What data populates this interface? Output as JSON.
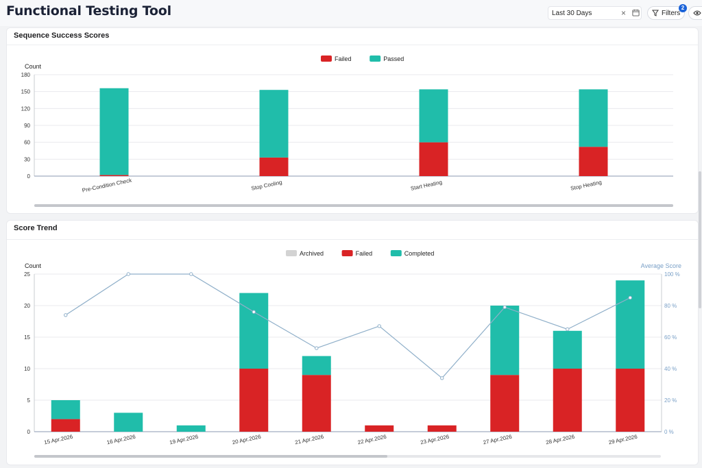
{
  "header": {
    "title": "Functional Testing Tool",
    "date_filter": "Last 30 Days",
    "filters_label": "Filters",
    "filters_count": "2"
  },
  "sequence_card": {
    "title": "Sequence Success Scores"
  },
  "trend_card": {
    "title": "Score Trend"
  },
  "colors": {
    "failed": "#d92325",
    "passed": "#20bdaa",
    "archived": "#d3d3d3",
    "line": "#8fafc9",
    "text_blue": "#7aa0c7"
  },
  "chart_data": [
    {
      "type": "bar",
      "stacked": true,
      "title": "Sequence Success Scores",
      "ylabel": "Count",
      "ylim": [
        0,
        180
      ],
      "yticks": [
        0,
        30,
        60,
        90,
        120,
        150,
        180
      ],
      "categories": [
        "Pre-Condition Check",
        "Stop Cooling",
        "Start Heating",
        "Stop Heating"
      ],
      "series": [
        {
          "name": "Failed",
          "color": "#d92325",
          "values": [
            2,
            33,
            60,
            52
          ]
        },
        {
          "name": "Passed",
          "color": "#20bdaa",
          "values": [
            154,
            120,
            94,
            102
          ]
        }
      ],
      "legend": "top-center",
      "grid": true
    },
    {
      "type": "bar",
      "stacked": true,
      "title": "Score Trend",
      "ylabel": "Count",
      "y2label": "Average Score",
      "ylim": [
        0,
        25
      ],
      "yticks": [
        0,
        5,
        10,
        15,
        20,
        25
      ],
      "y2lim": [
        0,
        100
      ],
      "y2ticks": [
        "0 %",
        "20 %",
        "40 %",
        "60 %",
        "80 %",
        "100 %"
      ],
      "categories": [
        "15 Apr.2026",
        "16 Apr.2026",
        "19 Apr.2026",
        "20 Apr.2026",
        "21 Apr.2026",
        "22 Apr.2026",
        "23 Apr.2026",
        "27 Apr.2026",
        "28 Apr.2026",
        "29 Apr.2026"
      ],
      "series": [
        {
          "name": "Archived",
          "color": "#d3d3d3",
          "values": [
            0,
            0,
            0,
            0,
            0,
            0,
            0,
            0,
            0,
            0
          ]
        },
        {
          "name": "Failed",
          "color": "#d92325",
          "values": [
            2,
            0,
            0,
            10,
            9,
            1,
            1,
            9,
            10,
            10
          ]
        },
        {
          "name": "Completed",
          "color": "#20bdaa",
          "values": [
            3,
            3,
            1,
            12,
            3,
            0,
            0,
            11,
            6,
            14
          ]
        }
      ],
      "line": {
        "name": "Average Score",
        "color": "#8fafc9",
        "values": [
          74,
          100,
          100,
          76,
          53,
          67,
          34,
          79,
          65,
          85
        ]
      },
      "legend": "top-center",
      "grid": true
    }
  ]
}
